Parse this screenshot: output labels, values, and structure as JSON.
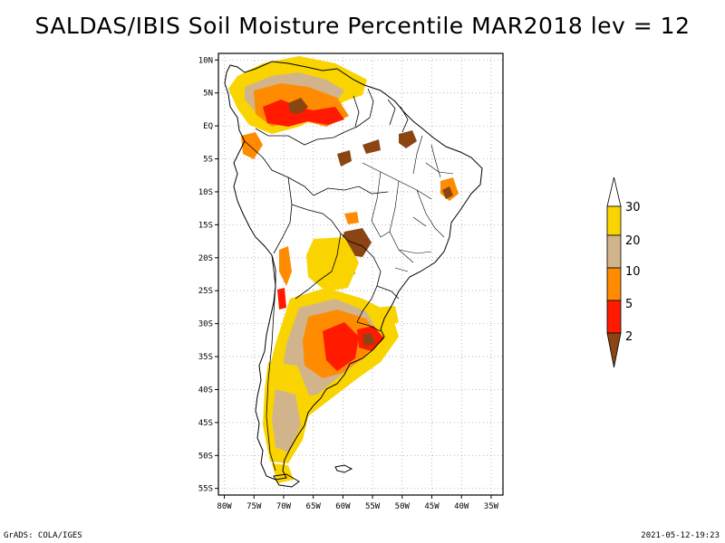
{
  "title": "SALDAS/IBIS Soil Moisture Percentile MAR2018 lev = 12",
  "axes": {
    "lat_ticks": [
      "10N",
      "5N",
      "EQ",
      "5S",
      "10S",
      "15S",
      "20S",
      "25S",
      "30S",
      "35S",
      "40S",
      "45S",
      "50S",
      "55S"
    ],
    "lon_ticks": [
      "80W",
      "75W",
      "70W",
      "65W",
      "60W",
      "55W",
      "50W",
      "45W",
      "40W",
      "35W"
    ],
    "lat_range": [
      11,
      -56
    ],
    "lon_range": [
      -81,
      -33
    ],
    "grid": "dotted"
  },
  "colorbar": {
    "labels": [
      "30",
      "20",
      "10",
      "5",
      "2"
    ],
    "colors": {
      "above_30": "#ffffff",
      "20_30": "#f9d400",
      "10_20": "#d2b48c",
      "5_10": "#ff8c00",
      "2_5": "#ff1a00",
      "below_2": "#8b4513"
    }
  },
  "footer": {
    "left": "GrADS: COLA/IGES",
    "right": "2021-05-12-19:23"
  },
  "colors": {
    "coast": "#000000",
    "grid": "#a8a8a8",
    "land": "#ffffff"
  }
}
